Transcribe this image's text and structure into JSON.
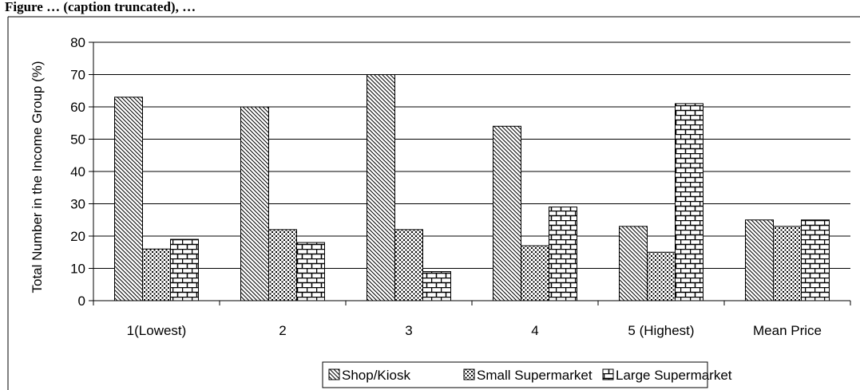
{
  "chart_data": {
    "type": "bar",
    "title": "",
    "xlabel": "",
    "ylabel": "Total Number in the Income Group (%)",
    "categories": [
      "1(Lowest)",
      "2",
      "3",
      "4",
      "5 (Highest)",
      "Mean Price"
    ],
    "series": [
      {
        "name": "Shop/Kiosk",
        "values": [
          63,
          60,
          70,
          54,
          23,
          25
        ],
        "pattern": "diagonal-hatch",
        "color": "#000000"
      },
      {
        "name": "Small Supermarket",
        "values": [
          16,
          22,
          22,
          17,
          15,
          23
        ],
        "pattern": "dots",
        "color": "#000000"
      },
      {
        "name": "Large Supermarket",
        "values": [
          19,
          18,
          9,
          29,
          61,
          25
        ],
        "pattern": "brick",
        "color": "#000000"
      }
    ],
    "ylim": [
      0,
      80
    ],
    "yticks": [
      0,
      10,
      20,
      30,
      40,
      50,
      60,
      70,
      80
    ],
    "grid": true,
    "legend_position": "bottom"
  }
}
